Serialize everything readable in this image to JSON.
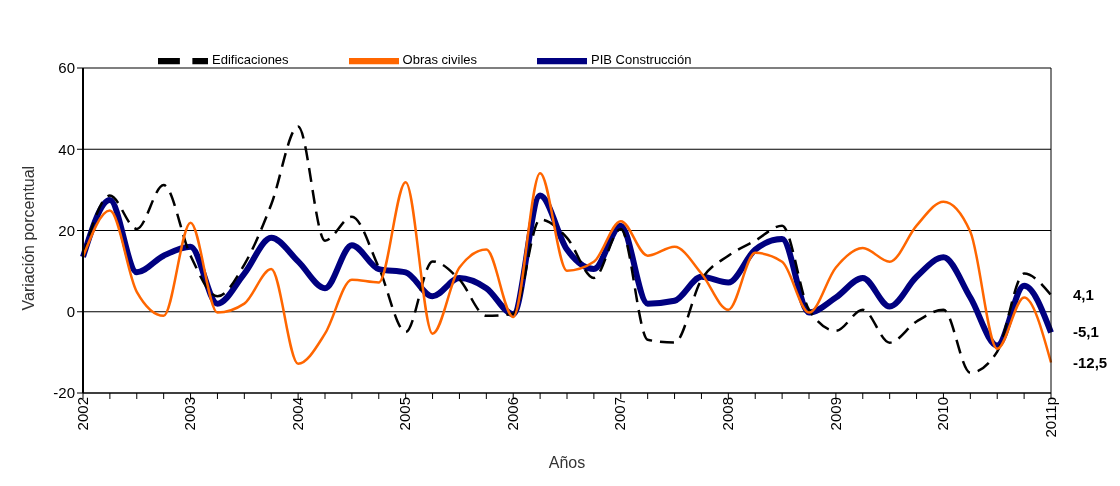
{
  "chart_data": {
    "type": "line",
    "xlabel": "Años",
    "ylabel": "Variación porcentual",
    "categories": [
      "2002",
      null,
      null,
      null,
      "2003",
      null,
      null,
      null,
      "2004",
      null,
      null,
      null,
      "2005",
      null,
      null,
      null,
      "2006",
      null,
      null,
      null,
      "2007",
      null,
      null,
      null,
      "2008",
      null,
      null,
      null,
      "2009",
      null,
      null,
      null,
      "2010",
      null,
      null,
      null,
      "2011p"
    ],
    "series": [
      {
        "name": "PIB Construcción",
        "color": "#000080",
        "line_style": "solid",
        "values": [
          13.5,
          27.5,
          9.7,
          13.8,
          16,
          2,
          9.4,
          18.2,
          12.4,
          5.8,
          16.4,
          10.5,
          9.7,
          3.8,
          8.3,
          5.8,
          -0.6,
          28.6,
          15.3,
          10.5,
          21.2,
          2,
          2.7,
          8.6,
          7.2,
          15.3,
          17.9,
          -0.2,
          3.5,
          8.3,
          1.3,
          8.6,
          13.4,
          3.5,
          -8.3,
          6.4,
          -5.1
        ],
        "value_labels": [
          null,
          null,
          null,
          null,
          null,
          null,
          null,
          null,
          null,
          null,
          null,
          null,
          null,
          null,
          null,
          null,
          null,
          null,
          null,
          null,
          null,
          null,
          null,
          null,
          null,
          null,
          null,
          null,
          null,
          null,
          null,
          null,
          null,
          null,
          null,
          null,
          "-5,1"
        ]
      },
      {
        "name": "Edificaciones",
        "color": "#000000",
        "line_style": "dashed",
        "values": [
          13.5,
          28.6,
          20.4,
          31.2,
          13.8,
          3.8,
          11.6,
          26.4,
          45.6,
          17.5,
          23.4,
          10.9,
          -5,
          12.4,
          7.9,
          -1,
          -0.5,
          22.7,
          18.2,
          8.3,
          20.4,
          -6.9,
          -7.6,
          7.9,
          13.8,
          17.5,
          21.2,
          0.5,
          -4.7,
          0.5,
          -7.6,
          -2.4,
          0.5,
          -15,
          -9.8,
          9.4,
          4.1
        ],
        "value_labels": [
          null,
          null,
          null,
          null,
          null,
          null,
          null,
          null,
          null,
          null,
          null,
          null,
          null,
          null,
          null,
          null,
          null,
          null,
          null,
          null,
          null,
          null,
          null,
          null,
          null,
          null,
          null,
          null,
          null,
          null,
          null,
          null,
          null,
          null,
          null,
          null,
          "4,1"
        ]
      },
      {
        "name": "Obras civiles",
        "color": "#ff6600",
        "line_style": "solid",
        "values": [
          13.5,
          24.9,
          4.9,
          -1,
          21.9,
          -0.2,
          2,
          10.5,
          -12.8,
          -5.4,
          7.9,
          7.2,
          31.9,
          -5.4,
          10.9,
          15.3,
          -1.3,
          34.1,
          10.1,
          12.3,
          22.3,
          13.8,
          16,
          9.4,
          0.5,
          14.5,
          12.3,
          -0.2,
          10.9,
          15.7,
          12.3,
          21.2,
          27.1,
          19.7,
          -9.1,
          3.5,
          -12.5
        ],
        "value_labels": [
          null,
          null,
          null,
          null,
          null,
          null,
          null,
          null,
          null,
          null,
          null,
          null,
          null,
          null,
          null,
          null,
          null,
          null,
          null,
          null,
          null,
          null,
          null,
          null,
          null,
          null,
          null,
          null,
          null,
          null,
          null,
          null,
          null,
          null,
          null,
          null,
          "-12,5"
        ]
      }
    ],
    "ylim": [
      -20,
      60
    ],
    "yticks": [
      -20,
      0,
      20,
      40,
      60
    ],
    "grid": "y",
    "legend": "top",
    "marker": "none"
  }
}
